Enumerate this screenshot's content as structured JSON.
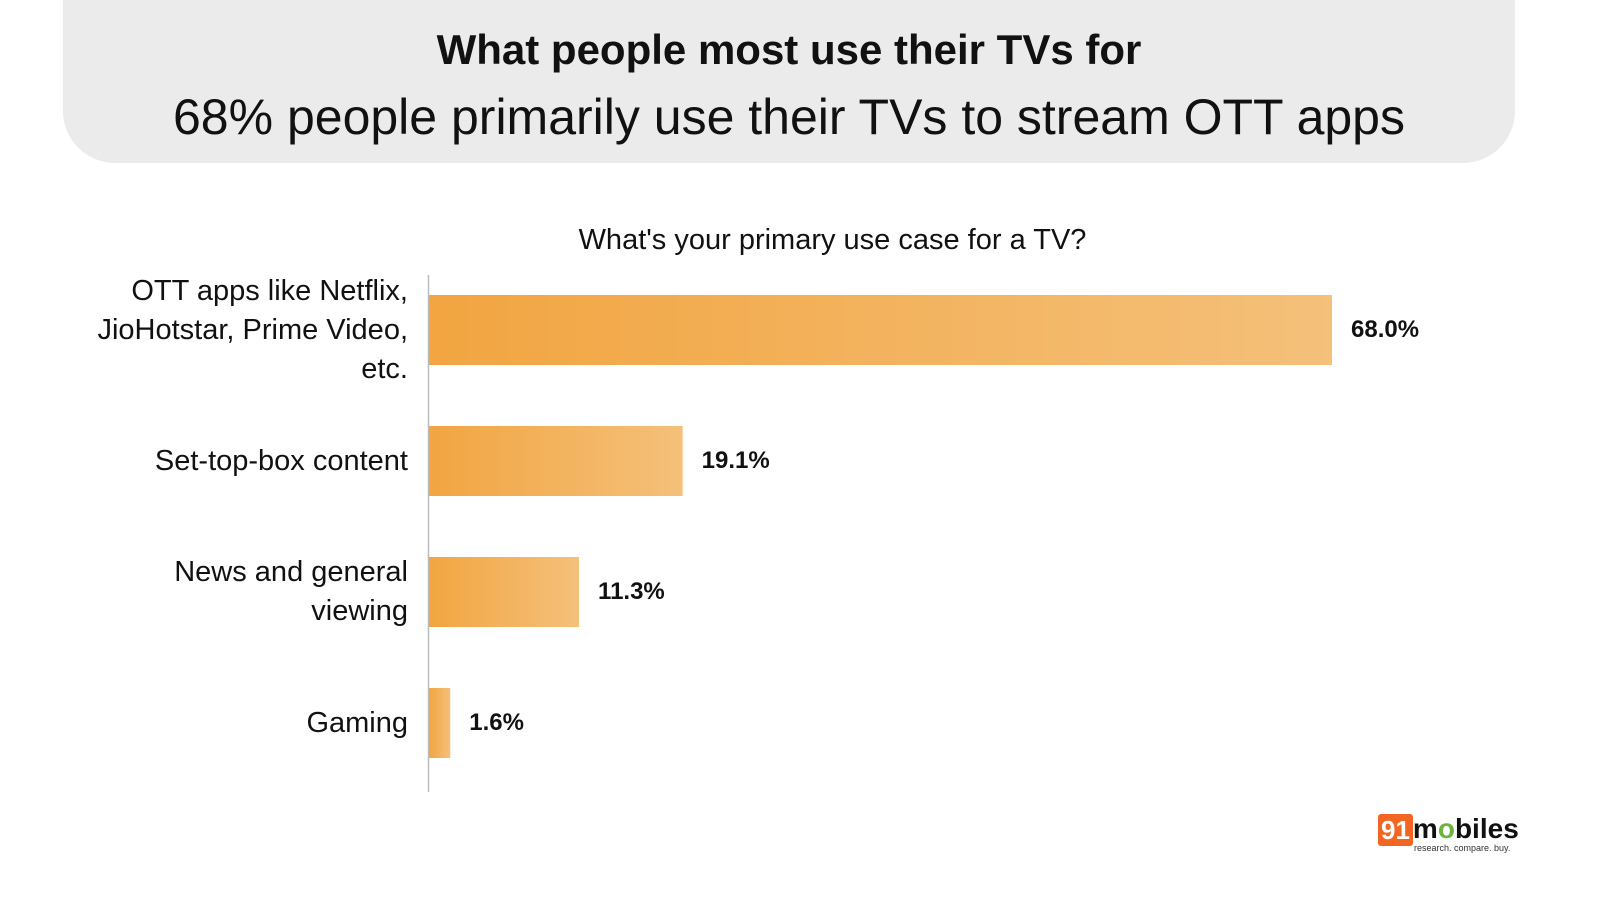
{
  "header": {
    "title": "What people most use their TVs for",
    "subtitle": "68% people primarily use their TVs to stream OTT apps"
  },
  "chart_data": {
    "type": "bar",
    "orientation": "horizontal",
    "title": "What's your primary use case for a TV?",
    "categories": [
      "OTT apps like Netflix, JioHotstar, Prime Video, etc.",
      "Set-top-box content",
      "News and general viewing",
      "Gaming"
    ],
    "category_lines": [
      [
        "OTT apps like Netflix,",
        "JioHotstar, Prime Video,",
        "etc."
      ],
      [
        "Set-top-box content"
      ],
      [
        "News and general",
        "viewing"
      ],
      [
        "Gaming"
      ]
    ],
    "values": [
      68.0,
      19.1,
      11.3,
      1.6
    ],
    "value_labels": [
      "68.0%",
      "19.1%",
      "11.3%",
      "1.6%"
    ],
    "xlim": [
      0,
      68
    ],
    "grid": false,
    "colors": {
      "bar_start": "#f2a541",
      "bar_end": "#f4c07a"
    }
  },
  "logo": {
    "number": "91",
    "word": "mobiles",
    "tagline": "research. compare. buy.",
    "colors": {
      "box": "#f26522",
      "accent": "#6cb33f"
    }
  }
}
